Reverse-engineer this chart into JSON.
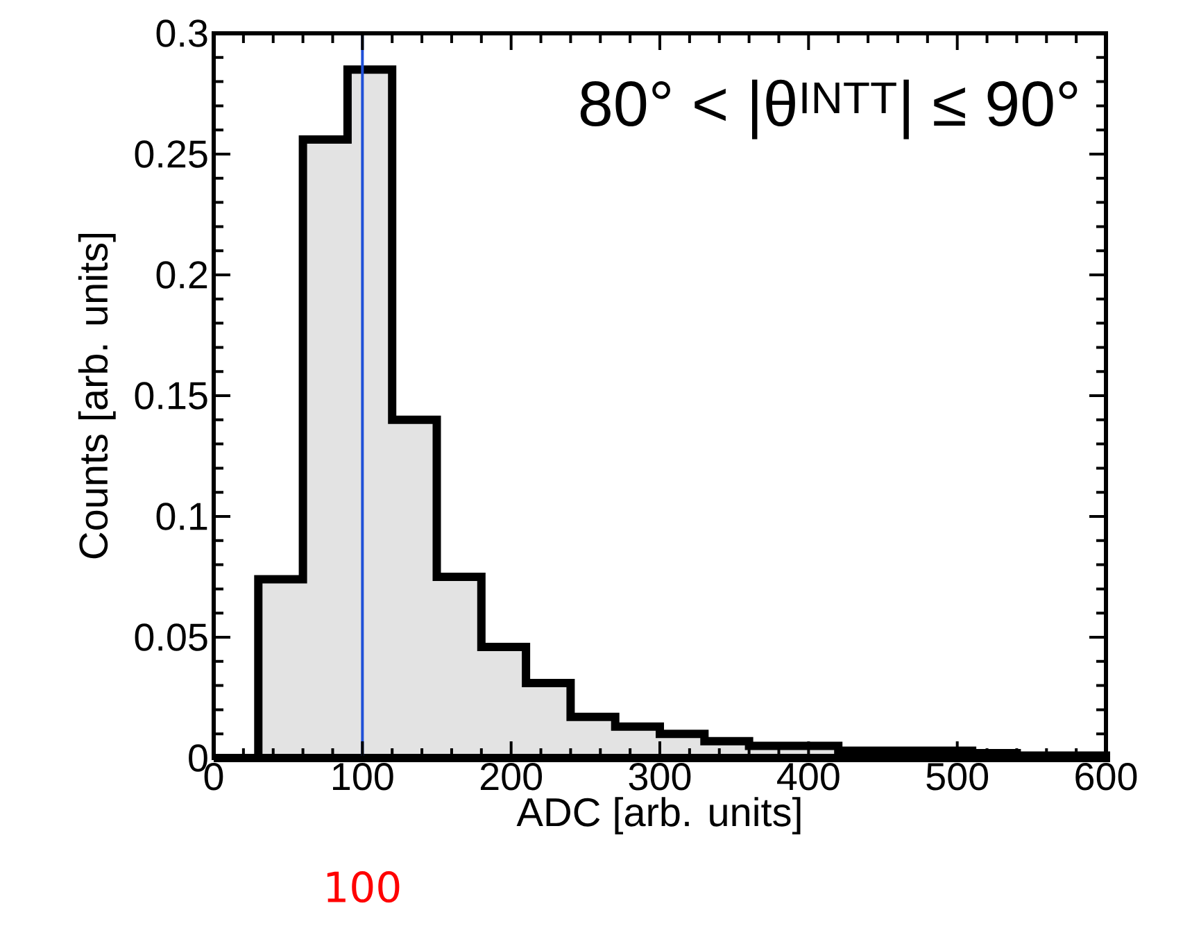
{
  "chart_data": {
    "type": "histogram",
    "xlabel": "ADC [arb. units]",
    "ylabel": "Counts [arb. units]",
    "annotations": [
      "80° < |θ$^{INTT}$| ≤ 90°"
    ],
    "bins": [
      0,
      30,
      60,
      90,
      120,
      150,
      180,
      210,
      240,
      270,
      300,
      330,
      360,
      390,
      420,
      450,
      480,
      510,
      540,
      570,
      600
    ],
    "values": [
      0,
      0.074,
      0.256,
      0.285,
      0.14,
      0.075,
      0.046,
      0.031,
      0.017,
      0.013,
      0.01,
      0.007,
      0.005,
      0.005,
      0.003,
      0.003,
      0.003,
      0.002,
      0.001,
      0.001
    ],
    "color": "#e3e3e3",
    "xlim": [
      0,
      600
    ],
    "ylim": [
      0,
      0.3
    ],
    "xticks": [
      0,
      100,
      200,
      300,
      400,
      500,
      600
    ],
    "yticks": [
      0,
      0.05,
      0.1,
      0.15,
      0.2,
      0.25,
      0.3
    ],
    "ref_lines": [
      {
        "axis": "x",
        "value": 100,
        "label": "100",
        "color": "#2050d8"
      }
    ]
  }
}
